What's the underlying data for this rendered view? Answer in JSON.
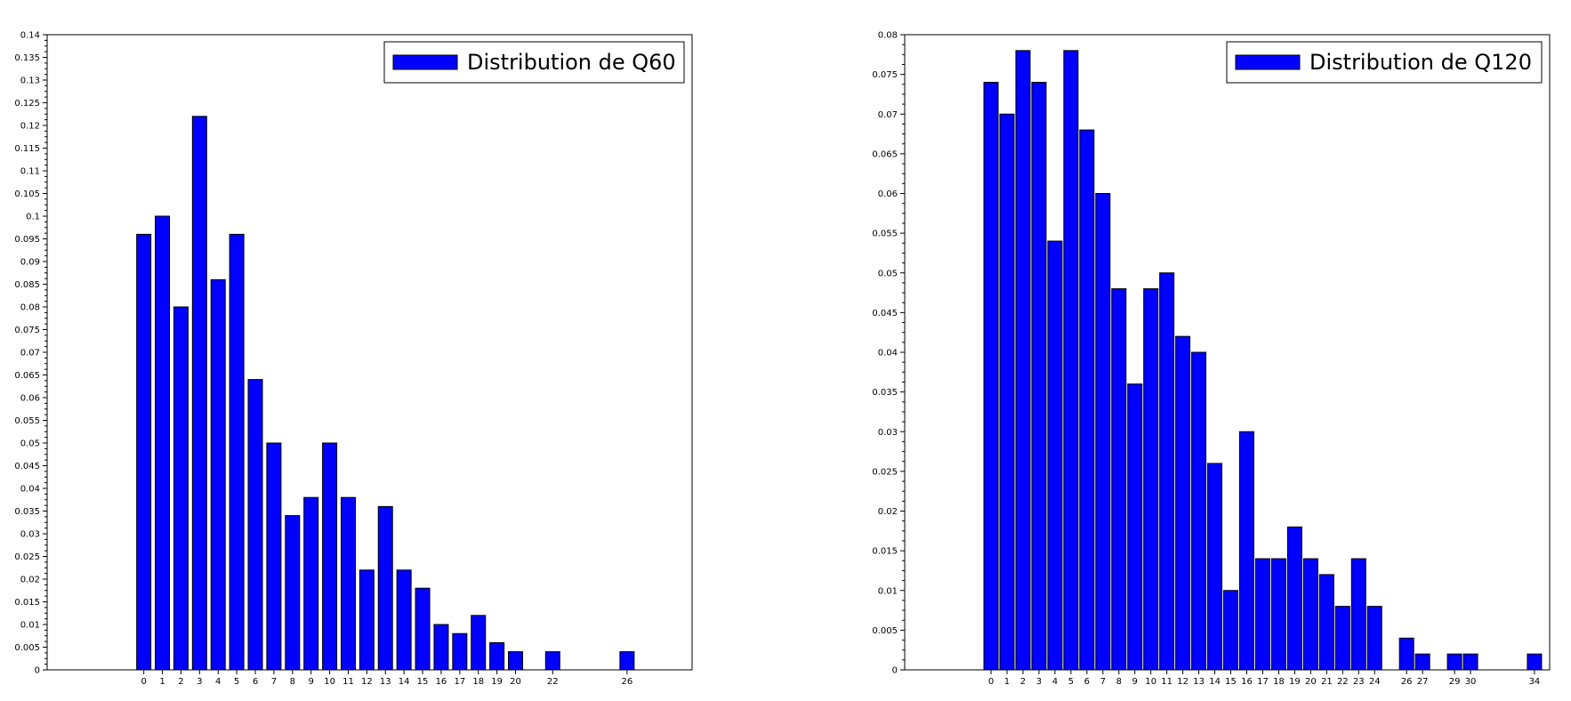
{
  "chart_data": [
    {
      "type": "bar",
      "legend_position": "top-right",
      "grid": false,
      "color": "#0000ff",
      "series": [
        {
          "name": "Distribution de Q60",
          "x": [
            0,
            1,
            2,
            3,
            4,
            5,
            6,
            7,
            8,
            9,
            10,
            11,
            12,
            13,
            14,
            15,
            16,
            17,
            18,
            19,
            20,
            22,
            26
          ],
          "values": [
            0.096,
            0.1,
            0.08,
            0.122,
            0.086,
            0.096,
            0.064,
            0.05,
            0.034,
            0.038,
            0.05,
            0.038,
            0.022,
            0.036,
            0.022,
            0.018,
            0.01,
            0.008,
            0.012,
            0.006,
            0.004,
            0.004,
            0.004
          ]
        }
      ],
      "x_tick_labels": [
        "0",
        "1",
        "2",
        "3",
        "4",
        "5",
        "6",
        "7",
        "8",
        "9",
        "10",
        "11",
        "12",
        "13",
        "14",
        "15",
        "16",
        "17",
        "18",
        "19",
        "20",
        "22",
        "26"
      ],
      "xlim": [
        -5.2,
        29.5
      ],
      "ylim": [
        0,
        0.14
      ],
      "y_tick_labels": [
        "0",
        "0.005",
        "0.01",
        "0.015",
        "0.02",
        "0.025",
        "0.03",
        "0.035",
        "0.04",
        "0.045",
        "0.05",
        "0.055",
        "0.06",
        "0.065",
        "0.07",
        "0.075",
        "0.08",
        "0.085",
        "0.09",
        "0.095",
        "0.1",
        "0.105",
        "0.11",
        "0.115",
        "0.12",
        "0.125",
        "0.13",
        "0.135",
        "0.14"
      ]
    },
    {
      "type": "bar",
      "legend_position": "top-right",
      "grid": false,
      "color": "#0000ff",
      "series": [
        {
          "name": "Distribution de Q120",
          "x": [
            0,
            1,
            2,
            3,
            4,
            5,
            6,
            7,
            8,
            9,
            10,
            11,
            12,
            13,
            14,
            15,
            16,
            17,
            18,
            19,
            20,
            21,
            22,
            23,
            24,
            26,
            27,
            29,
            30,
            34
          ],
          "values": [
            0.074,
            0.07,
            0.078,
            0.074,
            0.054,
            0.078,
            0.068,
            0.06,
            0.048,
            0.036,
            0.048,
            0.05,
            0.042,
            0.04,
            0.026,
            0.01,
            0.03,
            0.014,
            0.014,
            0.018,
            0.014,
            0.012,
            0.008,
            0.014,
            0.008,
            0.004,
            0.002,
            0.002,
            0.002,
            0.002
          ]
        }
      ],
      "x_tick_labels": [
        "0",
        "1",
        "2",
        "3",
        "4",
        "5",
        "6",
        "7",
        "8",
        "9",
        "10",
        "11",
        "12",
        "13",
        "14",
        "15",
        "16",
        "17",
        "18",
        "19",
        "20",
        "21",
        "22",
        "23",
        "24",
        "26",
        "27",
        "29",
        "30",
        "34"
      ],
      "xlim": [
        -5.4,
        34.95
      ],
      "ylim": [
        0,
        0.08
      ],
      "y_tick_labels": [
        "0",
        "0.005",
        "0.01",
        "0.015",
        "0.02",
        "0.025",
        "0.03",
        "0.035",
        "0.04",
        "0.045",
        "0.05",
        "0.055",
        "0.06",
        "0.065",
        "0.07",
        "0.075",
        "0.08"
      ]
    }
  ]
}
